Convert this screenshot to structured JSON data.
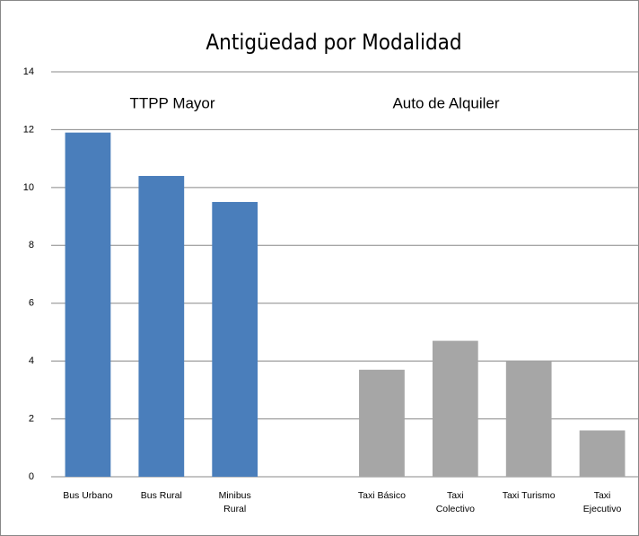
{
  "chart_data": {
    "type": "bar",
    "title": "Antigüedad por Modalidad",
    "annotations": [
      "TTPP Mayor",
      "Auto de Alquiler"
    ],
    "categories": [
      "Bus Urbano",
      "Bus Rural",
      "Minibus\nRural",
      null,
      "Taxi Básico",
      "Taxi\nColectivo",
      "Taxi Turismo",
      "Taxi\nEjecutivo"
    ],
    "values": [
      11.9,
      10.4,
      9.5,
      null,
      3.7,
      4.7,
      4.0,
      1.6
    ],
    "colors": [
      "#4a7ebb",
      "#4a7ebb",
      "#4a7ebb",
      null,
      "#a6a6a6",
      "#a6a6a6",
      "#a6a6a6",
      "#a6a6a6"
    ],
    "ylim": [
      0,
      14
    ],
    "yticks": [
      0,
      2,
      4,
      6,
      8,
      10,
      12,
      14
    ],
    "grid": true
  }
}
